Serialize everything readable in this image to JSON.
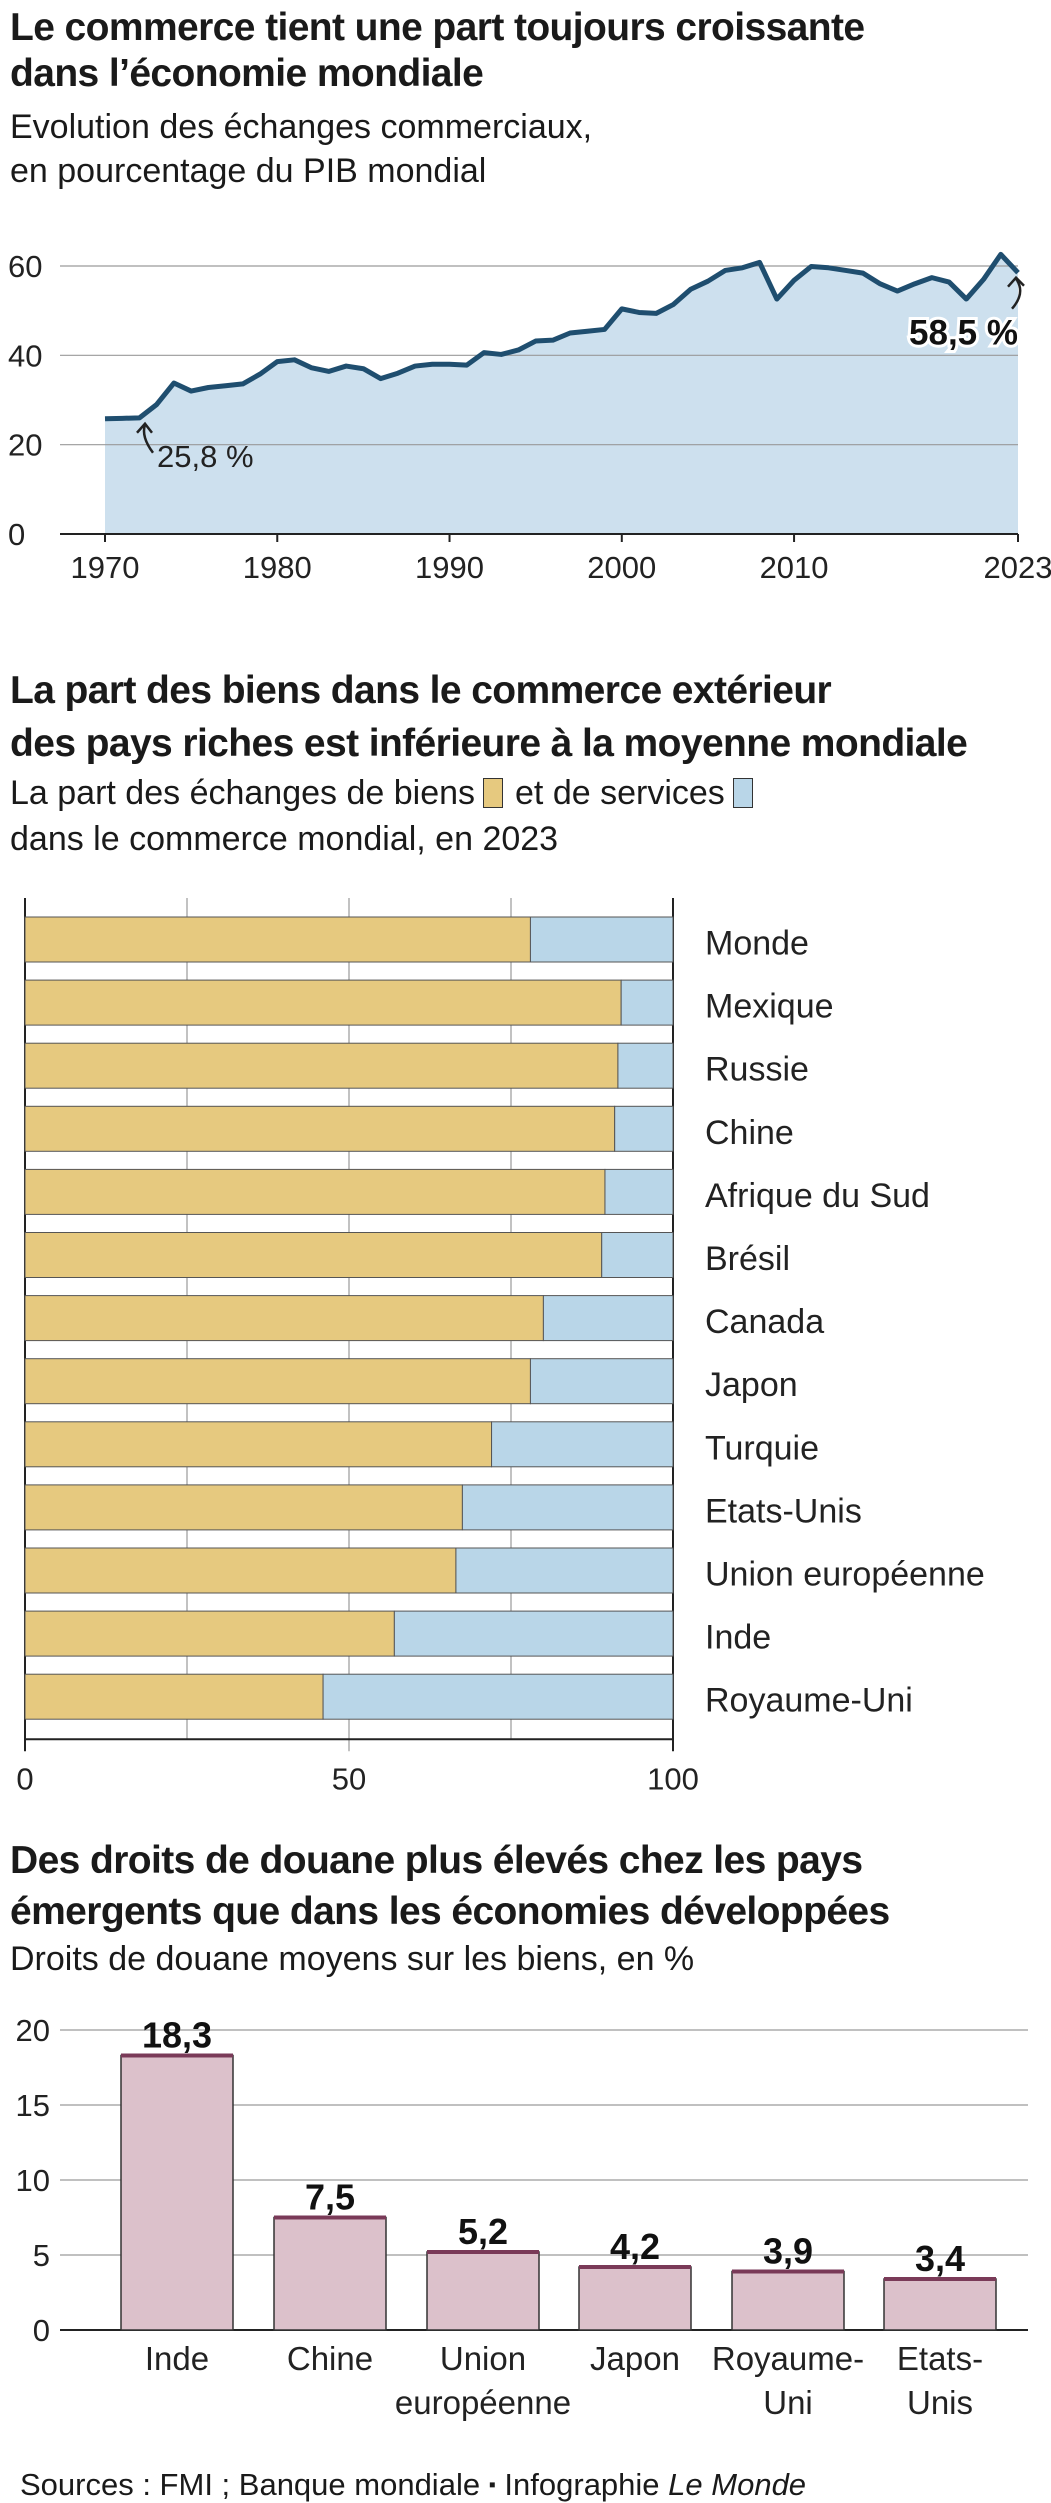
{
  "section1": {
    "title_line1": "Le commerce tient une part toujours croissante",
    "title_line2": "dans l’économie mondiale",
    "subtitle_line1": "Evolution des échanges commerciaux,",
    "subtitle_line2": "en pourcentage du PIB mondial"
  },
  "section2": {
    "title_line1": "La part des biens dans le commerce extérieur",
    "title_line2": "des pays riches est inférieure à la moyenne mondiale",
    "subtitle_part1": "La part des échanges de biens",
    "subtitle_part2": "et de services",
    "subtitle_line2": "dans le commerce mondial, en 2023"
  },
  "section3": {
    "title_line1": "Des droits de douane plus élevés chez les pays",
    "title_line2": "émergents que dans les économies développées",
    "subtitle": "Droits de douane moyens sur les biens, en %"
  },
  "footer": {
    "sources": "Sources : FMI ; Banque mondiale",
    "separator": "▪",
    "credit": "Infographie",
    "publication": "Le Monde"
  },
  "colors": {
    "line": "#1f4e6f",
    "area": "#cde0ee",
    "goods": "#e6c97f",
    "services": "#b9d6e8",
    "tariff_bar": "#dcc1cb",
    "tariff_top": "#7a3a58",
    "grid": "#9a9a9a"
  },
  "chart_data": [
    {
      "type": "area",
      "title": "",
      "xlabel": "",
      "ylabel": "",
      "ylim": [
        0,
        60
      ],
      "yticks": [
        0,
        20,
        40,
        60
      ],
      "xtick_labels": [
        "1970",
        "1980",
        "1990",
        "2000",
        "2010",
        "2023"
      ],
      "grid": true,
      "series": [
        {
          "x": [
            1970,
            1971,
            1972,
            1973,
            1974,
            1975,
            1976,
            1977,
            1978,
            1979,
            1980,
            1981,
            1982,
            1983,
            1984,
            1985,
            1986,
            1987,
            1988,
            1989,
            1990,
            1991,
            1992,
            1993,
            1994,
            1995,
            1996,
            1997,
            1998,
            1999,
            2000,
            2001,
            2002,
            2003,
            2004,
            2005,
            2006,
            2007,
            2008,
            2009,
            2010,
            2011,
            2012,
            2013,
            2014,
            2015,
            2016,
            2017,
            2018,
            2019,
            2020,
            2021,
            2022,
            2023
          ],
          "y": [
            25.8,
            25.9,
            26.0,
            29.0,
            33.8,
            32.0,
            32.8,
            33.2,
            33.6,
            35.8,
            38.6,
            39.0,
            37.2,
            36.4,
            37.6,
            37.0,
            34.8,
            36.0,
            37.6,
            38.0,
            38.0,
            37.8,
            40.6,
            40.2,
            41.2,
            43.2,
            43.4,
            45.0,
            45.4,
            45.8,
            50.4,
            49.6,
            49.4,
            51.4,
            54.8,
            56.6,
            59.0,
            59.6,
            60.8,
            52.6,
            56.8,
            59.9,
            59.6,
            59.0,
            58.4,
            56.0,
            54.4,
            56.0,
            57.4,
            56.4,
            52.6,
            57.0,
            62.6,
            58.5
          ]
        }
      ],
      "annotations": [
        {
          "label": "25,8 %",
          "x": 1970,
          "y": 25.8
        },
        {
          "label": "58,5 %",
          "x": 2023,
          "y": 58.5
        }
      ]
    },
    {
      "type": "bar",
      "orientation": "horizontal",
      "stacked": true,
      "title": "",
      "xlim": [
        0,
        100
      ],
      "xticks": [
        0,
        50,
        100
      ],
      "grid": true,
      "categories": [
        "Monde",
        "Mexique",
        "Russie",
        "Chine",
        "Afrique du Sud",
        "Brésil",
        "Canada",
        "Japon",
        "Turquie",
        "Etats-Unis",
        "Union européenne",
        "Inde",
        "Royaume-Uni"
      ],
      "series": [
        {
          "name": "biens",
          "values": [
            78,
            92,
            91.5,
            91,
            89.5,
            89,
            80,
            78,
            72,
            67.5,
            66.5,
            57,
            46
          ]
        },
        {
          "name": "services",
          "values": [
            22,
            8,
            8.5,
            9,
            10.5,
            11,
            20,
            22,
            28,
            32.5,
            33.5,
            43,
            54
          ]
        }
      ]
    },
    {
      "type": "bar",
      "title": "",
      "ylim": [
        0,
        20
      ],
      "yticks": [
        0,
        5,
        10,
        15,
        20
      ],
      "grid": true,
      "categories": [
        [
          "Inde"
        ],
        [
          "Chine"
        ],
        [
          "Union",
          "européenne"
        ],
        [
          "Japon"
        ],
        [
          "Royaume-",
          "Uni"
        ],
        [
          "Etats-",
          "Unis"
        ]
      ],
      "values": [
        18.3,
        7.5,
        5.2,
        4.2,
        3.9,
        3.4
      ],
      "value_labels": [
        "18,3",
        "7,5",
        "5,2",
        "4,2",
        "3,9",
        "3,4"
      ]
    }
  ]
}
